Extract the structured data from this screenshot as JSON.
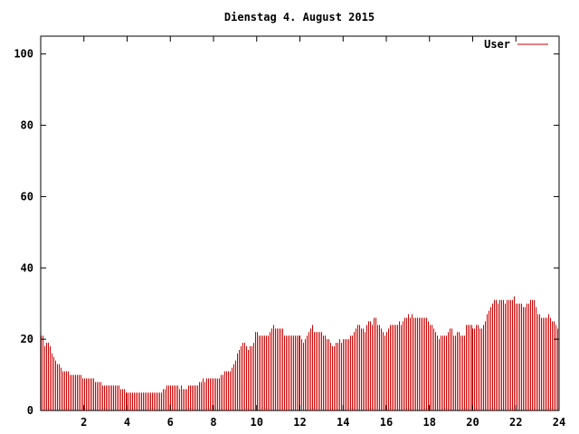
{
  "chart_data": {
    "type": "bar",
    "title": "Dienstag 4. August 2015",
    "xlabel": "",
    "ylabel": "",
    "xlim": [
      0,
      24
    ],
    "ylim": [
      0,
      105
    ],
    "x_ticks": [
      2,
      4,
      6,
      8,
      10,
      12,
      14,
      16,
      18,
      20,
      22,
      24
    ],
    "y_ticks": [
      0,
      20,
      40,
      60,
      80,
      100
    ],
    "grid": false,
    "legend": "top-right",
    "series": [
      {
        "name": "User",
        "color": "#cc0000",
        "x_start": 0,
        "x_step": 0.0833333,
        "values": [
          21,
          21,
          18,
          19,
          19,
          18,
          16,
          15,
          14,
          13,
          13,
          12,
          11,
          11,
          11,
          11,
          10,
          10,
          10,
          10,
          10,
          10,
          10,
          9,
          9,
          9,
          9,
          9,
          9,
          9,
          8,
          8,
          8,
          8,
          7,
          7,
          7,
          7,
          7,
          7,
          7,
          7,
          7,
          7,
          6,
          6,
          6,
          5,
          5,
          5,
          5,
          5,
          5,
          5,
          5,
          5,
          5,
          5,
          5,
          5,
          5,
          5,
          5,
          5,
          5,
          5,
          5,
          5,
          6,
          6,
          7,
          7,
          7,
          7,
          7,
          7,
          7,
          6,
          7,
          6,
          6,
          6,
          7,
          7,
          7,
          7,
          7,
          7,
          8,
          8,
          9,
          8,
          9,
          9,
          9,
          9,
          9,
          9,
          9,
          9,
          10,
          10,
          11,
          11,
          11,
          11,
          12,
          13,
          14,
          16,
          17,
          18,
          19,
          19,
          18,
          17,
          18,
          18,
          19,
          22,
          22,
          21,
          21,
          21,
          21,
          21,
          21,
          22,
          23,
          24,
          23,
          23,
          23,
          23,
          23,
          21,
          21,
          21,
          21,
          21,
          21,
          21,
          21,
          21,
          21,
          20,
          19,
          20,
          21,
          22,
          23,
          24,
          22,
          22,
          22,
          22,
          22,
          21,
          21,
          20,
          20,
          19,
          18,
          18,
          19,
          19,
          20,
          19,
          20,
          20,
          20,
          20,
          21,
          21,
          22,
          23,
          24,
          24,
          23,
          23,
          22,
          24,
          25,
          25,
          24,
          26,
          26,
          24,
          24,
          23,
          22,
          21,
          22,
          23,
          24,
          24,
          24,
          24,
          24,
          25,
          24,
          25,
          26,
          26,
          27,
          26,
          27,
          26,
          26,
          26,
          26,
          26,
          26,
          26,
          26,
          25,
          24,
          24,
          23,
          22,
          21,
          20,
          21,
          21,
          21,
          21,
          22,
          23,
          23,
          21,
          21,
          22,
          22,
          21,
          21,
          21,
          24,
          24,
          24,
          24,
          23,
          23,
          24,
          24,
          23,
          23,
          24,
          25,
          27,
          28,
          29,
          30,
          31,
          31,
          30,
          31,
          31,
          31,
          30,
          31,
          31,
          31,
          31,
          32,
          30,
          30,
          30,
          30,
          29,
          29,
          30,
          30,
          31,
          31,
          31,
          29,
          27,
          27,
          26,
          26,
          26,
          26,
          27,
          26,
          25,
          25,
          24,
          23
        ]
      }
    ]
  }
}
